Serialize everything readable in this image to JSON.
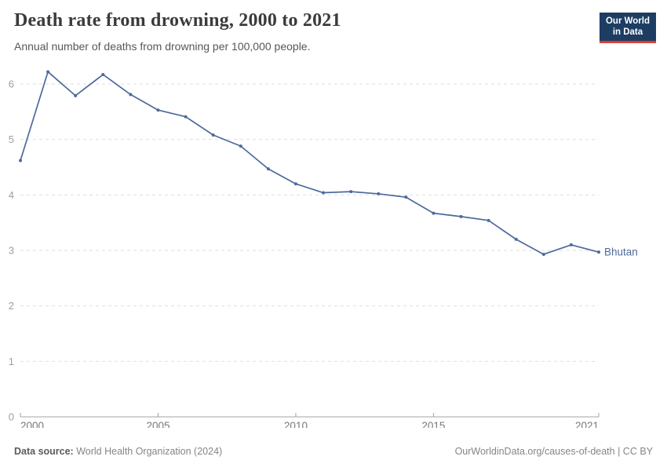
{
  "header": {
    "title": "Death rate from drowning, 2000 to 2021",
    "subtitle": "Annual number of deaths from drowning per 100,000 people.",
    "logo_line1": "Our World",
    "logo_line2": "in Data"
  },
  "chart_data": {
    "type": "line",
    "title": "Death rate from drowning, 2000 to 2021",
    "subtitle": "Annual number of deaths from drowning per 100,000 people.",
    "x": [
      2000,
      2001,
      2002,
      2003,
      2004,
      2005,
      2006,
      2007,
      2008,
      2009,
      2010,
      2011,
      2012,
      2013,
      2014,
      2015,
      2016,
      2017,
      2018,
      2019,
      2020,
      2021
    ],
    "series": [
      {
        "name": "Bhutan",
        "color": "#4C6A9C",
        "values": [
          4.62,
          6.22,
          5.79,
          6.17,
          5.81,
          5.53,
          5.41,
          5.08,
          4.88,
          4.47,
          4.2,
          4.04,
          4.06,
          4.02,
          3.96,
          3.67,
          3.61,
          3.54,
          3.2,
          2.93,
          3.1,
          2.97
        ]
      }
    ],
    "xlabel": "",
    "ylabel": "",
    "xlim": [
      2000,
      2021
    ],
    "ylim": [
      0,
      6.38
    ],
    "x_ticks": [
      2000,
      2005,
      2010,
      2015,
      2021
    ],
    "y_ticks": [
      0,
      1,
      2,
      3,
      4,
      5,
      6
    ],
    "grid": "horizontal-dashed",
    "legend_position": "end-of-line-label",
    "end_label": "Bhutan"
  },
  "footer": {
    "source_label": "Data source:",
    "source_value": "World Health Organization (2024)",
    "credit": "OurWorldinData.org/causes-of-death | CC BY"
  },
  "colors": {
    "line": "#4C6A9C",
    "grid": "#dedede",
    "axis": "#a3a3a3",
    "y_tick_label": "#9e9e9e",
    "x_tick_label": "#787878",
    "logo_bg": "#1d3d63",
    "logo_accent": "#dc3e32"
  }
}
